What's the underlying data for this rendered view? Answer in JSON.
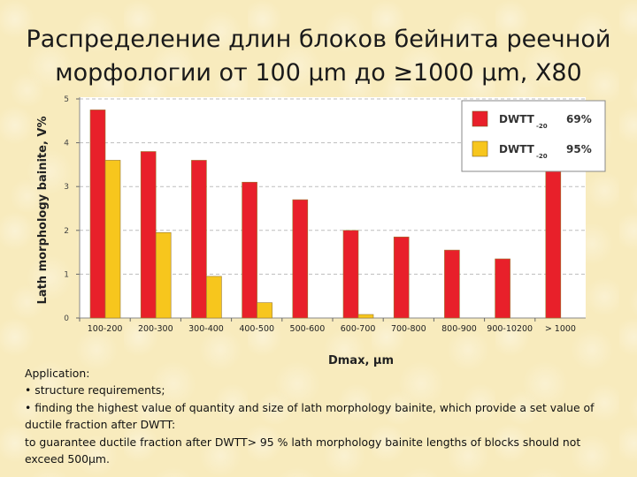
{
  "title_lines": [
    "Распределение длин блоков бейнита реечной",
    "морфологии от 100 µm до ≥1000 µm, X80"
  ],
  "application": {
    "heading": "Application:",
    "bullet1": "• structure requirements;",
    "bullet2": "• finding the highest value of quantity and size of lath morphology bainite, which provide a set value of ductile fraction after DWTT:",
    "conclusion": "to guarantee ductile fraction after DWTT> 95 % lath morphology bainite lengths of blocks should not exceed 500µm."
  },
  "colors": {
    "red": "#e8202a",
    "yellow": "#f7c61d",
    "grid": "#bdbdbd"
  },
  "chart_data": {
    "type": "bar",
    "title": "",
    "xlabel": "Dmax, µm",
    "ylabel": "Lath morphology bainite, V%",
    "ylim": [
      0,
      5
    ],
    "yticks": [
      0,
      1,
      2,
      3,
      4,
      5
    ],
    "grid": true,
    "legend_position": "top-right",
    "categories": [
      "100-200",
      "200-300",
      "300-400",
      "400-500",
      "500-600",
      "600-700",
      "700-800",
      "800-900",
      "900-10200",
      "> 1000"
    ],
    "series": [
      {
        "name": "DWTT",
        "name_sub": "-20",
        "legend_value": "69%",
        "color": "#e8202a",
        "values": [
          4.75,
          3.8,
          3.6,
          3.1,
          2.7,
          2.0,
          1.85,
          1.55,
          1.35,
          3.8
        ]
      },
      {
        "name": "DWTT",
        "name_sub": "-20",
        "legend_value": "95%",
        "color": "#f7c61d",
        "values": [
          3.6,
          1.95,
          0.95,
          0.35,
          0,
          0.08,
          0,
          0,
          0,
          0
        ]
      }
    ]
  }
}
